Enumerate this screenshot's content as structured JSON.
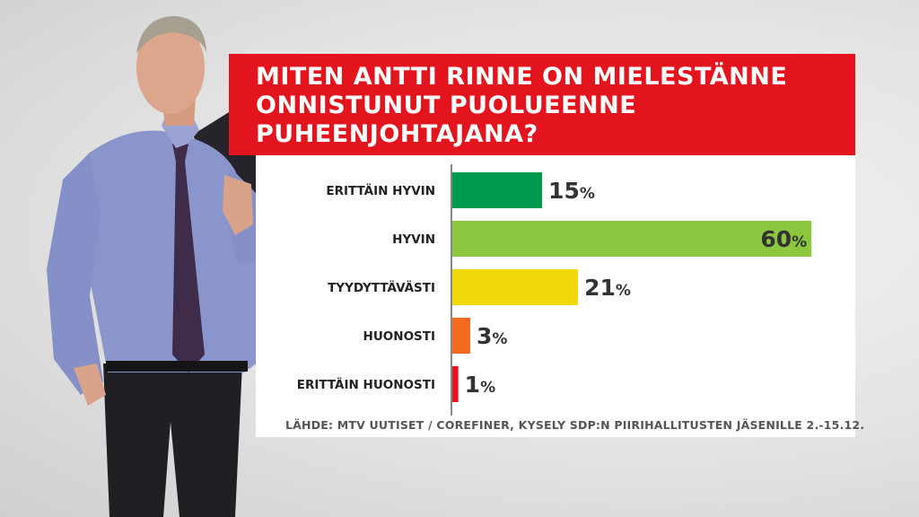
{
  "title_lines": [
    "MITEN ANTTI RINNE ON MIELESTÄNNE",
    "ONNISTUNUT PUOLUEENNE",
    "PUHEENJOHTAJANA?"
  ],
  "source": "LÄHDE: MTV UUTISET / COREFINER, KYSELY SDP:N PIIRIHALLITUSTEN JÄSENILLE 2.-15.12.",
  "chart_data": {
    "type": "bar",
    "orientation": "horizontal",
    "title": "MITEN ANTTI RINNE ON MIELESTÄNNE ONNISTUNUT PUOLUEENNE PUHEENJOHTAJANA?",
    "categories": [
      "ERITTÄIN HYVIN",
      "HYVIN",
      "TYYDYTTÄVÄSTI",
      "HUONOSTI",
      "ERITTÄIN HUONOSTI"
    ],
    "values": [
      15,
      60,
      21,
      3,
      1
    ],
    "value_labels": [
      "15",
      "60",
      "21",
      "3",
      "1"
    ],
    "unit": "%",
    "colors": [
      "#00994d",
      "#8dc63f",
      "#f0d80a",
      "#f26b21",
      "#e3141d"
    ],
    "grid": false,
    "legend": "none"
  },
  "colors": {
    "title_bg": "#e3141d",
    "title_text": "#ffffff"
  }
}
